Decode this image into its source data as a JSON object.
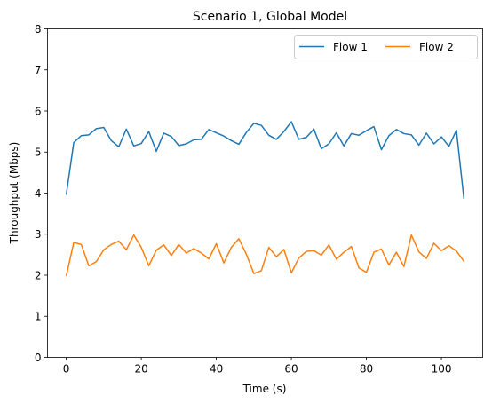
{
  "chart_data": {
    "type": "line",
    "title": "Scenario 1, Global Model",
    "xlabel": "Time (s)",
    "ylabel": "Throughput (Mbps)",
    "xlim": [
      -5,
      111
    ],
    "ylim": [
      0,
      8
    ],
    "xticks": [
      0,
      20,
      40,
      60,
      80,
      100
    ],
    "yticks": [
      0,
      1,
      2,
      3,
      4,
      5,
      6,
      7,
      8
    ],
    "grid": false,
    "legend": {
      "placement": "top-right",
      "columns": 2
    },
    "x": [
      0,
      2,
      4,
      6,
      8,
      10,
      12,
      14,
      16,
      18,
      20,
      22,
      24,
      26,
      28,
      30,
      32,
      34,
      36,
      38,
      40,
      42,
      44,
      46,
      48,
      50,
      52,
      54,
      56,
      58,
      60,
      62,
      64,
      66,
      68,
      70,
      72,
      74,
      76,
      78,
      80,
      82,
      84,
      86,
      88,
      90,
      92,
      94,
      96,
      98,
      100,
      102,
      104,
      106
    ],
    "series": [
      {
        "name": "Flow 1",
        "color": "#1f77b4",
        "values": [
          3.96,
          5.23,
          5.4,
          5.42,
          5.57,
          5.6,
          5.28,
          5.13,
          5.56,
          5.15,
          5.21,
          5.5,
          5.02,
          5.46,
          5.38,
          5.16,
          5.2,
          5.3,
          5.31,
          5.55,
          5.47,
          5.39,
          5.28,
          5.19,
          5.48,
          5.7,
          5.65,
          5.41,
          5.31,
          5.5,
          5.74,
          5.31,
          5.36,
          5.56,
          5.08,
          5.2,
          5.47,
          5.15,
          5.45,
          5.41,
          5.52,
          5.62,
          5.06,
          5.4,
          5.55,
          5.45,
          5.42,
          5.17,
          5.46,
          5.2,
          5.37,
          5.14,
          5.53,
          3.86
        ]
      },
      {
        "name": "Flow 2",
        "color": "#ff7f0e",
        "values": [
          1.98,
          2.8,
          2.75,
          2.23,
          2.33,
          2.62,
          2.75,
          2.83,
          2.62,
          2.98,
          2.68,
          2.23,
          2.61,
          2.74,
          2.48,
          2.75,
          2.54,
          2.65,
          2.54,
          2.4,
          2.77,
          2.3,
          2.68,
          2.89,
          2.51,
          2.04,
          2.11,
          2.68,
          2.45,
          2.63,
          2.06,
          2.42,
          2.58,
          2.6,
          2.49,
          2.74,
          2.39,
          2.56,
          2.7,
          2.18,
          2.07,
          2.56,
          2.64,
          2.25,
          2.56,
          2.21,
          2.98,
          2.57,
          2.41,
          2.78,
          2.6,
          2.72,
          2.59,
          2.34
        ]
      }
    ]
  }
}
